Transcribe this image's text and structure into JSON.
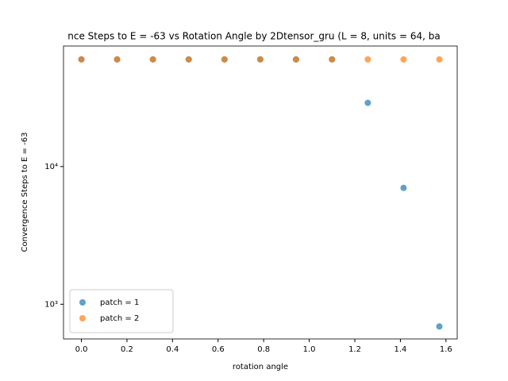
{
  "chart_data": {
    "type": "scatter",
    "title": "nce Steps to E = -63 vs Rotation Angle by 2Dtensor_gru (L = 8, units = 64, ba",
    "xlabel": "rotation angle",
    "ylabel": "Convergence Steps to E = -63",
    "x": [
      0,
      0.157,
      0.314,
      0.471,
      0.628,
      0.785,
      0.942,
      1.1,
      1.257,
      1.414,
      1.571
    ],
    "series": [
      {
        "name": "patch = 1",
        "color": "#1f77b4",
        "values": [
          60000,
          60000,
          60000,
          60000,
          60000,
          60000,
          60000,
          60000,
          29000,
          7000,
          690
        ]
      },
      {
        "name": "patch = 2",
        "color": "#ff7f0e",
        "values": [
          60000,
          60000,
          60000,
          60000,
          60000,
          60000,
          60000,
          60000,
          60000,
          60000,
          60000
        ]
      }
    ],
    "xlim": [
      -0.0785,
      1.6493
    ],
    "xticks": [
      {
        "value": 0,
        "label": "0.0"
      },
      {
        "value": 0.2,
        "label": "0.2"
      },
      {
        "value": 0.4,
        "label": "0.4"
      },
      {
        "value": 0.6,
        "label": "0.6"
      },
      {
        "value": 0.8,
        "label": "0.8"
      },
      {
        "value": 1.0,
        "label": "1.0"
      },
      {
        "value": 1.2,
        "label": "1.2"
      },
      {
        "value": 1.4,
        "label": "1.4"
      },
      {
        "value": 1.6,
        "label": "1.6"
      }
    ],
    "ylim": [
      560,
      75000
    ],
    "yticks": [
      {
        "value": 1000,
        "label": "10³"
      },
      {
        "value": 10000,
        "label": "10⁴"
      }
    ],
    "log_y": true,
    "legend": "lower left"
  }
}
